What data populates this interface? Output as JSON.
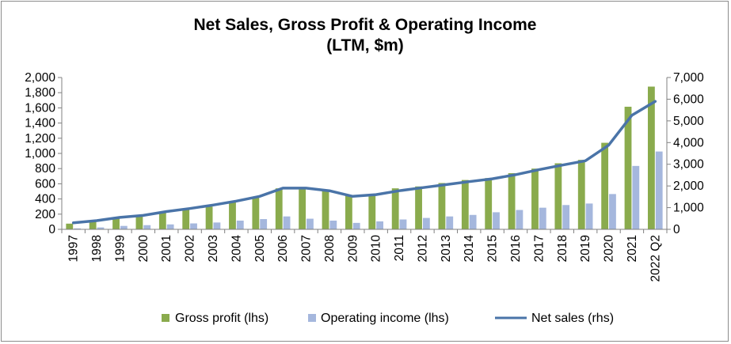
{
  "chart_data": {
    "type": "bar",
    "title": "Net Sales, Gross Profit & Operating Income",
    "subtitle": "(LTM, $m)",
    "categories": [
      "1997",
      "1998",
      "1999",
      "2000",
      "2001",
      "2002",
      "2003",
      "2004",
      "2005",
      "2006",
      "2007",
      "2008",
      "2009",
      "2010",
      "2011",
      "2012",
      "2013",
      "2014",
      "2015",
      "2016",
      "2017",
      "2018",
      "2019",
      "2020",
      "2021",
      "2022 Q2"
    ],
    "y_left": {
      "min": 0,
      "max": 2000,
      "ticks": [
        0,
        200,
        400,
        600,
        800,
        1000,
        1200,
        1400,
        1600,
        1800,
        2000
      ],
      "tick_labels": [
        "0",
        "200",
        "400",
        "600",
        "800",
        "1,000",
        "1,200",
        "1,400",
        "1,600",
        "1,800",
        "2,000"
      ]
    },
    "y_right": {
      "min": 0,
      "max": 7000,
      "ticks": [
        0,
        1000,
        2000,
        3000,
        4000,
        5000,
        6000,
        7000
      ],
      "tick_labels": [
        "0",
        "1,000",
        "2,000",
        "3,000",
        "4,000",
        "5,000",
        "6,000",
        "7,000"
      ]
    },
    "grid": false,
    "legend_position": "bottom",
    "series": [
      {
        "name": "Gross profit (lhs)",
        "type": "bar",
        "axis": "left",
        "color": "#8aab4d",
        "values": [
          75,
          110,
          150,
          175,
          225,
          265,
          300,
          365,
          425,
          540,
          550,
          525,
          445,
          455,
          540,
          565,
          610,
          650,
          675,
          740,
          800,
          870,
          915,
          1140,
          1615,
          1880
        ]
      },
      {
        "name": "Operating income (lhs)",
        "type": "bar",
        "axis": "left",
        "color": "#a5b7dd",
        "values": [
          12,
          25,
          45,
          55,
          65,
          78,
          90,
          115,
          135,
          170,
          140,
          115,
          85,
          105,
          130,
          150,
          170,
          190,
          225,
          255,
          285,
          320,
          340,
          465,
          835,
          1025
        ]
      },
      {
        "name": "Net sales (rhs)",
        "type": "line",
        "axis": "right",
        "color": "#4a74a8",
        "values": [
          300,
          400,
          550,
          640,
          820,
          960,
          1120,
          1300,
          1520,
          1900,
          1900,
          1780,
          1520,
          1600,
          1780,
          1920,
          2060,
          2200,
          2330,
          2520,
          2750,
          2960,
          3160,
          3880,
          5260,
          5900
        ]
      }
    ]
  }
}
